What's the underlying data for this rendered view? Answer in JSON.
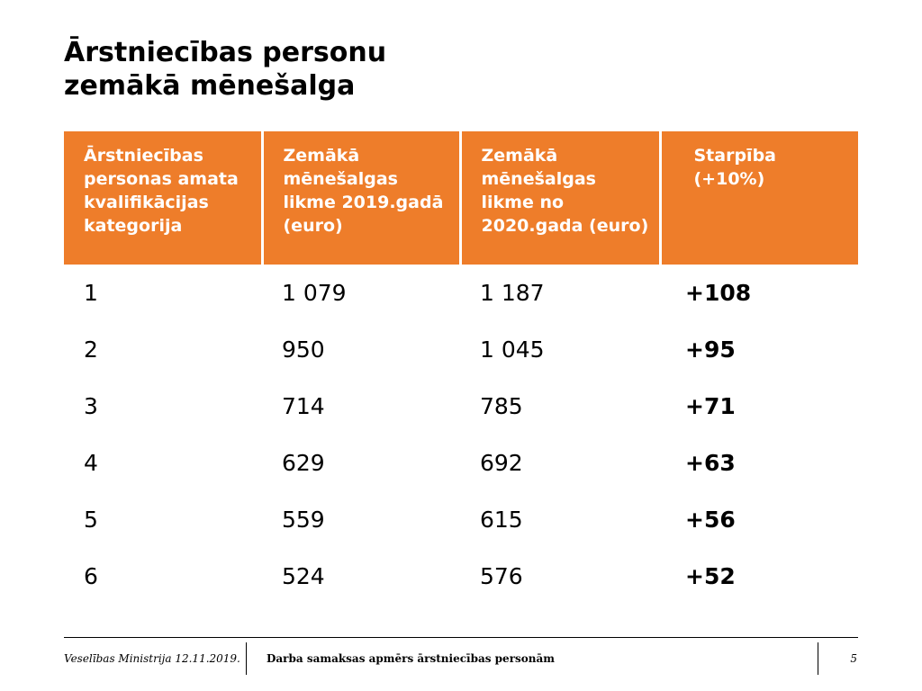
{
  "slide": {
    "title_line1": "Ārstniecības personu",
    "title_line2": "zemākā mēnešalga"
  },
  "table": {
    "headers": [
      "Ārstniecības personas amata kvalifikācijas kategorija",
      "Zemākā mēnešalgas likme 2019.gadā (euro)",
      "Zemākā mēnešalgas likme no 2020.gada (euro)",
      "Starpība (+10%)"
    ],
    "header_color": "#ee7d2a",
    "rows": [
      [
        "1",
        "1 079",
        "1 187",
        "+108"
      ],
      [
        "2",
        "950",
        "1 045",
        "+95"
      ],
      [
        "3",
        "714",
        "785",
        "+71"
      ],
      [
        "4",
        "629",
        "692",
        "+63"
      ],
      [
        "5",
        "559",
        "615",
        "+56"
      ],
      [
        "6",
        "524",
        "576",
        "+52"
      ]
    ]
  },
  "footer": {
    "left": "Veselības Ministrija 12.11.2019.",
    "center": "Darba samaksas apmērs ārstniecības personām",
    "page": "5"
  }
}
